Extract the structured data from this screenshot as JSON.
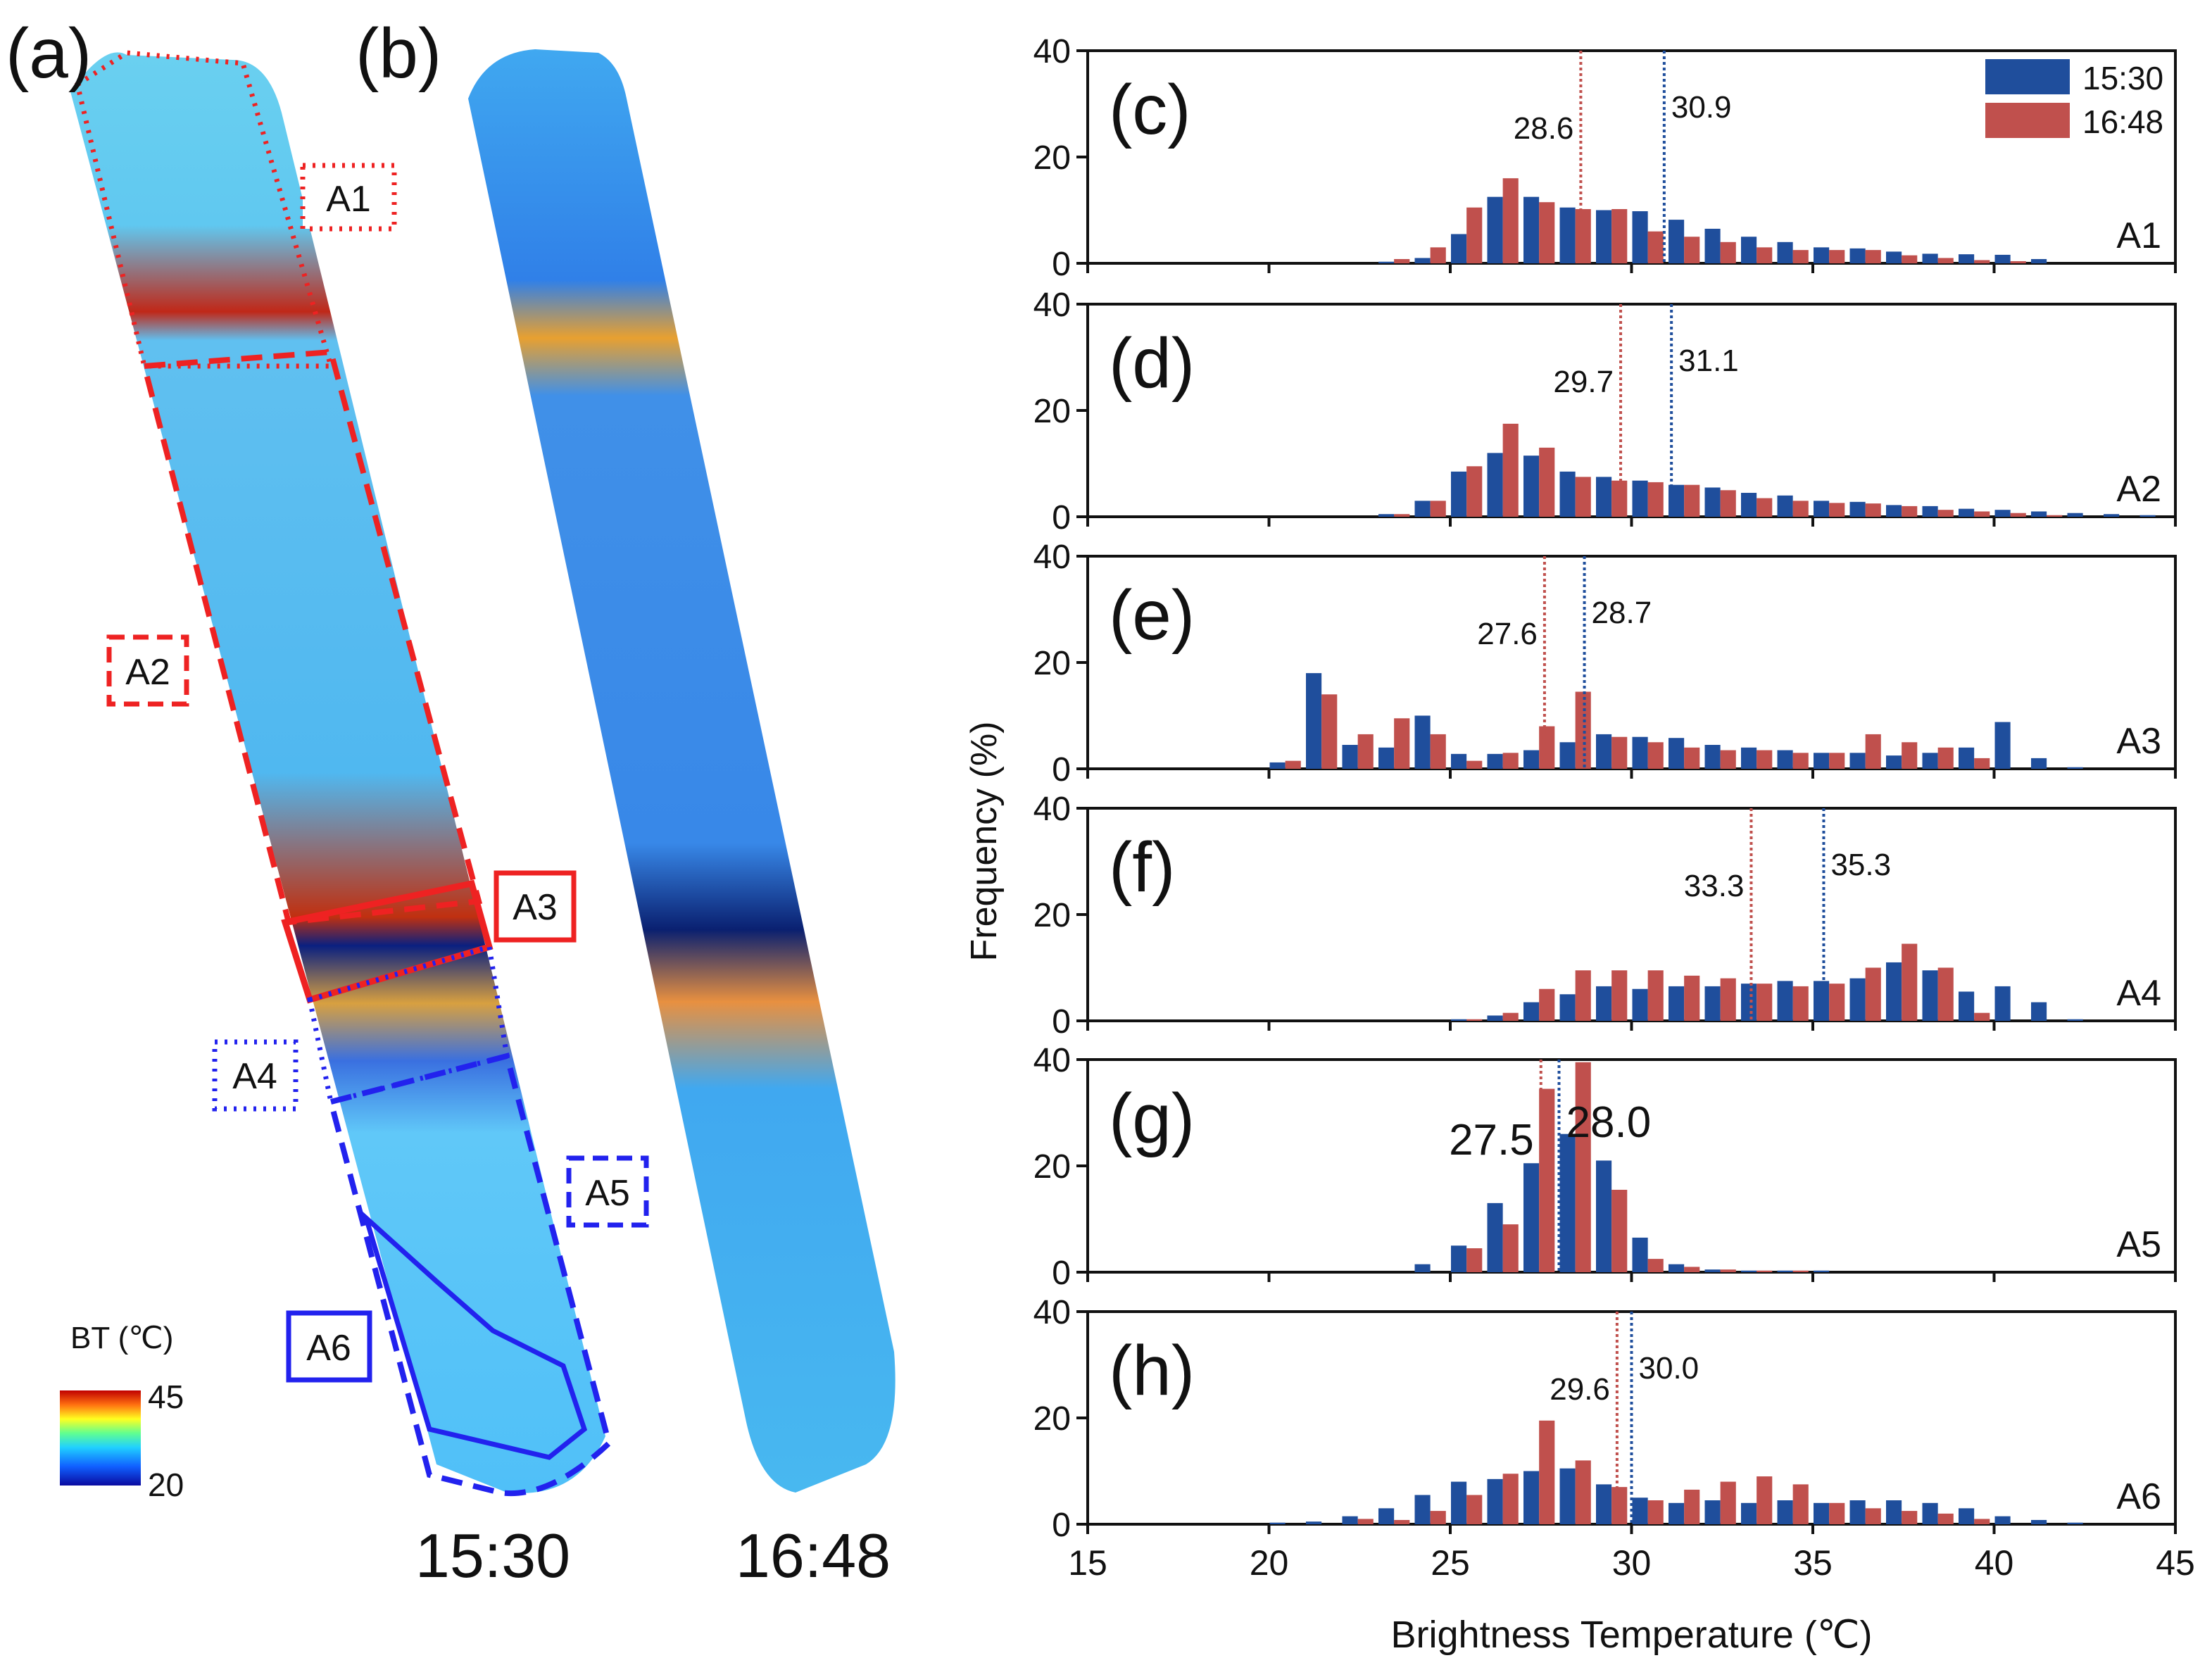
{
  "panels": {
    "a": "(a)",
    "b": "(b)",
    "c": "(c)",
    "d": "(d)",
    "e": "(e)",
    "f": "(f)",
    "g": "(g)",
    "h": "(h)"
  },
  "maps": {
    "time_a": "15:30",
    "time_b": "16:48",
    "area_labels": [
      "A1",
      "A2",
      "A3",
      "A4",
      "A5",
      "A6"
    ],
    "colorbar": {
      "title": "BT (℃)",
      "max": "45",
      "min": "20"
    }
  },
  "colors": {
    "series1": "#1f4e9c",
    "series2": "#c0504d",
    "map_red": "#ee2222",
    "map_blue": "#2222ee"
  },
  "chart_data": {
    "type": "bar",
    "xlabel": "Brightness Temperature (℃)",
    "ylabel": "Frequency  (%)",
    "xlim": [
      15,
      45
    ],
    "ylim": [
      0,
      40
    ],
    "xticks": [
      "15",
      "20",
      "25",
      "30",
      "35",
      "40",
      "45"
    ],
    "yticks": [
      "0",
      "20",
      "40"
    ],
    "legend": {
      "placement": "top-right",
      "entries": [
        "15:30",
        "16:48"
      ]
    },
    "bins": [
      20,
      21,
      22,
      23,
      24,
      25,
      26,
      27,
      28,
      29,
      30,
      31,
      32,
      33,
      34,
      35,
      36,
      37,
      38,
      39,
      40,
      41,
      42,
      43,
      44
    ],
    "subplots": [
      {
        "panel": "(c)",
        "area": "A1",
        "mean1": 30.9,
        "mean1_label": "30.9",
        "mean2": 28.6,
        "mean2_label": "28.6",
        "series": [
          {
            "name": "15:30",
            "values": [
              0,
              0,
              0,
              0.3,
              1.0,
              5.5,
              12.5,
              12.5,
              10.5,
              10,
              9.8,
              8.2,
              6.5,
              5.0,
              4.0,
              3.0,
              2.8,
              2.2,
              1.8,
              1.7,
              1.6,
              0.8,
              0,
              0,
              0
            ]
          },
          {
            "name": "16:48",
            "values": [
              0,
              0,
              0,
              0.8,
              3.0,
              10.5,
              16.0,
              11.5,
              10.2,
              10.2,
              6.0,
              5.0,
              4.0,
              3.0,
              2.5,
              2.5,
              2.5,
              1.5,
              1.0,
              0.6,
              0.4,
              0,
              0,
              0,
              0
            ]
          }
        ]
      },
      {
        "panel": "(d)",
        "area": "A2",
        "mean1": 31.1,
        "mean1_label": "31.1",
        "mean2": 29.7,
        "mean2_label": "29.7",
        "series": [
          {
            "name": "15:30",
            "values": [
              0,
              0,
              0,
              0.5,
              3.0,
              8.5,
              12.0,
              11.5,
              8.5,
              7.5,
              6.8,
              6.0,
              5.5,
              4.5,
              4.0,
              3.0,
              2.8,
              2.2,
              2.0,
              1.5,
              1.3,
              1.0,
              0.7,
              0.5,
              0.3
            ]
          },
          {
            "name": "16:48",
            "values": [
              0,
              0,
              0,
              0.5,
              3.0,
              9.5,
              17.5,
              13.0,
              7.5,
              6.8,
              6.5,
              6.0,
              5.0,
              3.5,
              3.0,
              2.6,
              2.5,
              2.0,
              1.3,
              1.0,
              0.7,
              0.3,
              0,
              0,
              0
            ]
          }
        ]
      },
      {
        "panel": "(e)",
        "area": "A3",
        "mean1": 28.7,
        "mean1_label": "28.7",
        "mean2": 27.6,
        "mean2_label": "27.6",
        "series": [
          {
            "name": "15:30",
            "values": [
              1.2,
              18.0,
              4.5,
              4.0,
              10.0,
              2.8,
              2.8,
              3.5,
              5.0,
              6.5,
              6.0,
              5.8,
              4.5,
              4.0,
              3.5,
              3.0,
              3.0,
              2.5,
              3.0,
              4.0,
              8.8,
              2.0,
              0.3,
              0,
              0
            ]
          },
          {
            "name": "16:48",
            "values": [
              1.5,
              14.0,
              6.5,
              9.5,
              6.5,
              1.5,
              3.0,
              8.0,
              14.5,
              6.0,
              5.0,
              4.0,
              3.5,
              3.5,
              3.0,
              3.0,
              6.5,
              5.0,
              4.0,
              2.0,
              0,
              0,
              0,
              0,
              0
            ]
          }
        ]
      },
      {
        "panel": "(f)",
        "area": "A4",
        "mean1": 35.3,
        "mean1_label": "35.3",
        "mean2": 33.3,
        "mean2_label": "33.3",
        "series": [
          {
            "name": "15:30",
            "values": [
              0,
              0,
              0,
              0,
              0,
              0.3,
              1.0,
              3.5,
              5.0,
              6.5,
              6.0,
              6.5,
              6.5,
              7.0,
              7.5,
              7.5,
              8.0,
              11.0,
              9.5,
              5.5,
              6.5,
              3.5,
              0.3,
              0,
              0
            ]
          },
          {
            "name": "16:48",
            "values": [
              0,
              0,
              0,
              0,
              0,
              0.3,
              1.5,
              6.0,
              9.5,
              9.5,
              9.5,
              8.5,
              8.0,
              7.0,
              6.5,
              7.0,
              10.0,
              14.5,
              10.0,
              1.5,
              0,
              0,
              0,
              0,
              0
            ]
          }
        ]
      },
      {
        "panel": "(g)",
        "area": "A5",
        "mean1": 28.0,
        "mean1_label": "28.0",
        "mean2": 27.5,
        "mean2_label": "27.5",
        "series": [
          {
            "name": "15:30",
            "values": [
              0,
              0,
              0,
              0,
              1.5,
              5.0,
              13.0,
              20.5,
              26.0,
              21.0,
              6.5,
              1.5,
              0.5,
              0.3,
              0.3,
              0.3,
              0,
              0,
              0,
              0,
              0,
              0,
              0,
              0,
              0
            ]
          },
          {
            "name": "16:48",
            "values": [
              0,
              0,
              0,
              0,
              0,
              4.5,
              9.0,
              34.5,
              39.5,
              15.5,
              2.5,
              1.0,
              0.5,
              0.3,
              0.3,
              0,
              0,
              0,
              0,
              0,
              0,
              0,
              0,
              0,
              0
            ]
          }
        ]
      },
      {
        "panel": "(h)",
        "area": "A6",
        "mean1": 30.0,
        "mean1_label": "30.0",
        "mean2": 29.6,
        "mean2_label": "29.6",
        "series": [
          {
            "name": "15:30",
            "values": [
              0.3,
              0.5,
              1.5,
              3.0,
              5.5,
              8.0,
              8.5,
              10.0,
              10.5,
              7.5,
              5.0,
              4.0,
              4.5,
              4.0,
              4.5,
              4.0,
              4.5,
              4.5,
              4.0,
              3.0,
              1.5,
              0.8,
              0.3,
              0,
              0
            ]
          },
          {
            "name": "16:48",
            "values": [
              0,
              0,
              1.0,
              0.8,
              2.5,
              5.5,
              9.5,
              19.5,
              12.0,
              7.0,
              4.5,
              6.5,
              8.0,
              9.0,
              7.5,
              4.0,
              3.0,
              2.5,
              2.0,
              1.0,
              0,
              0,
              0,
              0,
              0
            ]
          }
        ]
      }
    ]
  }
}
